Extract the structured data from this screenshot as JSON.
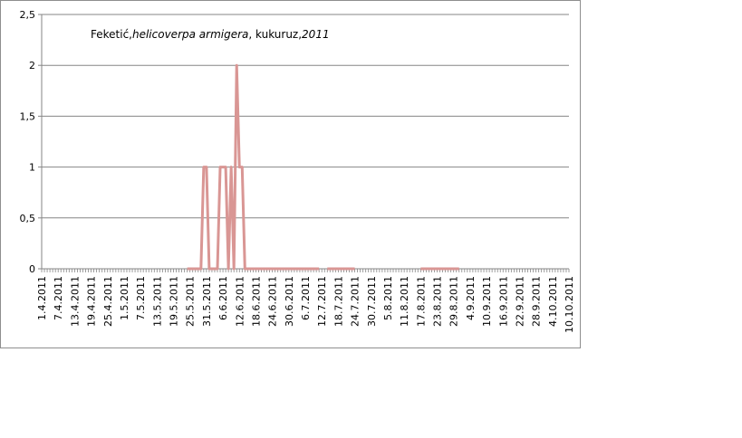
{
  "chart_data": {
    "type": "line",
    "title_parts": [
      {
        "text": "Feketić,",
        "italic": false
      },
      {
        "text": "helicoverpa armigera",
        "italic": true
      },
      {
        "text": ", kukuruz,",
        "italic": false
      },
      {
        "text": "2011",
        "italic": true
      }
    ],
    "xlabel": "",
    "ylabel": "",
    "ylim": [
      0,
      2.5
    ],
    "yticks": [
      "0",
      "0,5",
      "1",
      "1,5",
      "2",
      "2,5"
    ],
    "ytick_values": [
      0,
      0.5,
      1,
      1.5,
      2,
      2.5
    ],
    "grid": true,
    "legend": "none",
    "line_color": "#d99694",
    "x_start": "1.4.2011",
    "x_end": "10.10.2011",
    "xtick_labels": [
      "1.4.2011",
      "7.4.2011",
      "13.4.2011",
      "19.4.2011",
      "25.4.2011",
      "1.5.2011",
      "7.5.2011",
      "13.5.2011",
      "19.5.2011",
      "25.5.2011",
      "31.5.2011",
      "6.6.2011",
      "12.6.2011",
      "18.6.2011",
      "24.6.2011",
      "30.6.2011",
      "6.7.2011",
      "12.7.2011",
      "18.7.2011",
      "24.7.2011",
      "30.7.2011",
      "5.8.2011",
      "11.8.2011",
      "17.8.2011",
      "23.8.2011",
      "29.8.2011",
      "4.9.2011",
      "10.9.2011",
      "16.9.2011",
      "22.9.2011",
      "28.9.2011",
      "4.10.2011",
      "10.10.2011"
    ],
    "series": [
      {
        "points": [
          {
            "x": "24.5.2011",
            "y": 0
          },
          {
            "x": "29.5.2011",
            "y": 0
          },
          {
            "x": "30.5.2011",
            "y": 1
          },
          {
            "x": "31.5.2011",
            "y": 1
          },
          {
            "x": "1.6.2011",
            "y": 0
          },
          {
            "x": "4.6.2011",
            "y": 0
          },
          {
            "x": "5.6.2011",
            "y": 1
          },
          {
            "x": "6.6.2011",
            "y": 1
          },
          {
            "x": "7.6.2011",
            "y": 1
          },
          {
            "x": "8.6.2011",
            "y": 0
          },
          {
            "x": "9.6.2011",
            "y": 1
          },
          {
            "x": "10.6.2011",
            "y": 0
          },
          {
            "x": "11.6.2011",
            "y": 2
          },
          {
            "x": "12.6.2011",
            "y": 1
          },
          {
            "x": "13.6.2011",
            "y": 1
          },
          {
            "x": "14.6.2011",
            "y": 0
          },
          {
            "x": "11.7.2011",
            "y": 0
          }
        ],
        "segments_after": [
          {
            "from": "14.7.2011",
            "to": "24.7.2011",
            "y": 0
          },
          {
            "from": "17.8.2011",
            "to": "31.8.2011",
            "y": 0
          }
        ]
      }
    ]
  }
}
